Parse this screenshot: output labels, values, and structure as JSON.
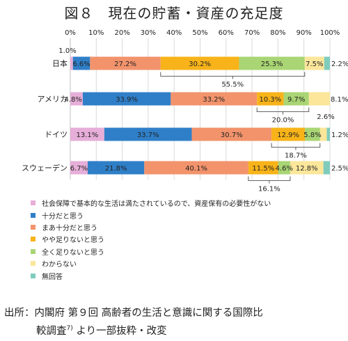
{
  "figure_title": "図８　現在の貯蓄・資産の充足度",
  "colors": {
    "c0": "#e6aed8",
    "c1": "#2f7fc8",
    "c2": "#f2936c",
    "c3": "#f7b319",
    "c4": "#a9d574",
    "c5": "#fbe69a",
    "c6": "#7fccbd"
  },
  "chart_data": {
    "type": "bar",
    "orientation": "horizontal",
    "stacked": true,
    "percent": true,
    "xlim": [
      0,
      100
    ],
    "x_ticks": [
      "0%",
      "10%",
      "20%",
      "30%",
      "40%",
      "50%",
      "60%",
      "70%",
      "80%",
      "90%",
      "100%"
    ],
    "categories": [
      "日本",
      "アメリカ",
      "ドイツ",
      "スウェーデン"
    ],
    "series": [
      {
        "name": "社会保障で基本的な生活は満たされているので、資産保有の必要性がない",
        "color": "#e6aed8",
        "values": [
          1.0,
          4.8,
          13.1,
          6.7
        ],
        "labels": [
          "1.0%",
          "4.8%",
          "13.1%",
          "6.7%"
        ]
      },
      {
        "name": "十分だと思う",
        "color": "#2f7fc8",
        "values": [
          6.6,
          33.9,
          33.7,
          21.8
        ],
        "labels": [
          "6.6%",
          "33.9%",
          "33.7%",
          "21.8%"
        ]
      },
      {
        "name": "まあ十分だと思う",
        "color": "#f2936c",
        "values": [
          27.2,
          33.2,
          30.7,
          40.1
        ],
        "labels": [
          "27.2%",
          "33.2%",
          "30.7%",
          "40.1%"
        ]
      },
      {
        "name": "やや足りないと思う",
        "color": "#f7b319",
        "values": [
          30.2,
          10.3,
          12.9,
          11.5
        ],
        "labels": [
          "30.2%",
          "10.3%",
          "12.9%",
          "11.5%"
        ]
      },
      {
        "name": "全く足りないと思う",
        "color": "#a9d574",
        "values": [
          25.3,
          9.7,
          5.8,
          4.6
        ],
        "labels": [
          "25.3%",
          "9.7%",
          "5.8%",
          "4.6%"
        ]
      },
      {
        "name": "わからない",
        "color": "#fbe69a",
        "values": [
          7.5,
          8.1,
          2.6,
          12.8
        ],
        "labels": [
          "7.5%",
          "8.1%",
          "2.6%",
          "12.8%"
        ]
      },
      {
        "name": "無回答",
        "color": "#7fccbd",
        "values": [
          2.2,
          0.0,
          1.2,
          2.5
        ],
        "labels": [
          "2.2%",
          "",
          "1.2%",
          "2.5%"
        ]
      }
    ],
    "brackets": [
      {
        "category": "日本",
        "label": "55.5%"
      },
      {
        "category": "アメリカ",
        "label": "20.0%"
      },
      {
        "category": "ドイツ",
        "label": "18.7%"
      },
      {
        "category": "スウェーデン",
        "label": "16.1%"
      }
    ],
    "grid": true,
    "legend_position": "bottom-left"
  },
  "legend": [
    {
      "label": "社会保障で基本的な生活は満たされているので、資産保有の必要性がない",
      "color": "#e6aed8"
    },
    {
      "label": "十分だと思う",
      "color": "#2f7fc8"
    },
    {
      "label": "まあ十分だと思う",
      "color": "#f2936c"
    },
    {
      "label": "やや足りないと思う",
      "color": "#f7b319"
    },
    {
      "label": "全く足りないと思う",
      "color": "#a9d574"
    },
    {
      "label": "わからない",
      "color": "#fbe69a"
    },
    {
      "label": "無回答",
      "color": "#7fccbd"
    }
  ],
  "source": {
    "line1": "出所：内閣府 第９回 高齢者の生活と意識に関する国際比",
    "line2_text": "較調査",
    "line2_sup": "7)",
    "line2_rest": " より一部抜粋・改変"
  }
}
